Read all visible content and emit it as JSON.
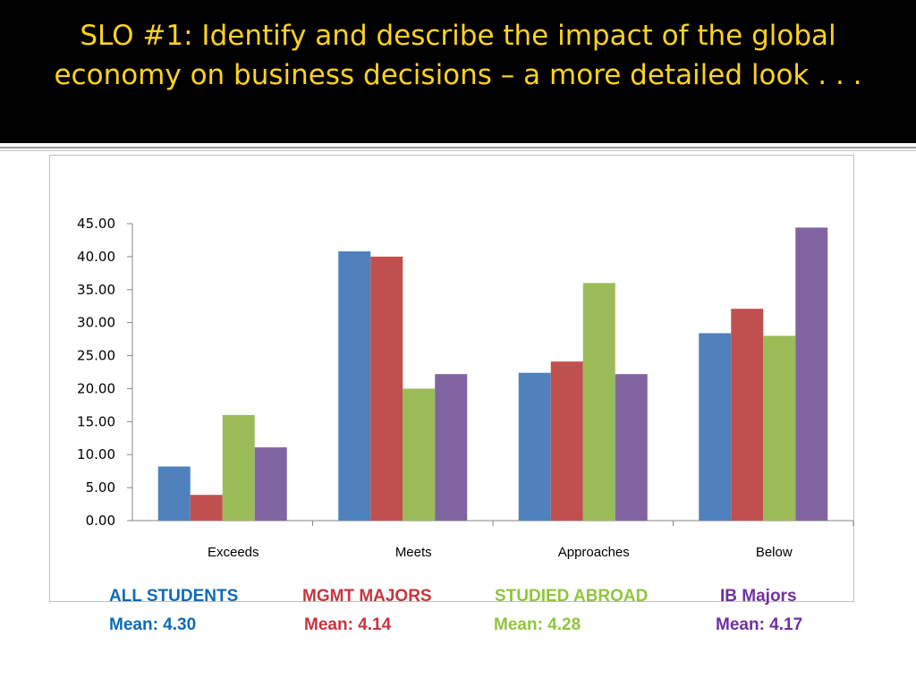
{
  "slide": {
    "title": "SLO #1:  Identify and describe the impact of the global economy on business decisions – a more detailed look . . ."
  },
  "chart_data": {
    "type": "bar",
    "categories": [
      "Exceeds",
      "Meets",
      "Approaches",
      "Below"
    ],
    "ylim": [
      0,
      45
    ],
    "yticks": [
      "0.00",
      "5.00",
      "10.00",
      "15.00",
      "20.00",
      "25.00",
      "30.00",
      "35.00",
      "40.00",
      "45.00"
    ],
    "grid": false,
    "series": [
      {
        "name": "ALL STUDENTS",
        "color": "#4f81bd",
        "values": [
          8.2,
          40.8,
          22.4,
          28.4
        ]
      },
      {
        "name": "MGMT MAJORS",
        "color": "#c0504d",
        "values": [
          3.9,
          40.0,
          24.1,
          32.1
        ]
      },
      {
        "name": "STUDIED ABROAD",
        "color": "#9bbb59",
        "values": [
          16.0,
          20.0,
          36.0,
          28.0
        ]
      },
      {
        "name": "IB Majors",
        "color": "#8064a2",
        "values": [
          11.1,
          22.2,
          22.2,
          44.4
        ]
      }
    ]
  },
  "legend": [
    {
      "name": "ALL STUDENTS",
      "mean": "Mean: 4.30",
      "color": "#0e6bb6"
    },
    {
      "name": "MGMT MAJORS",
      "mean": "Mean: 4.14",
      "color": "#c8343e"
    },
    {
      "name": "STUDIED ABROAD",
      "mean": "Mean: 4.28",
      "color": "#8fc63c"
    },
    {
      "name": "IB Majors",
      "mean": "Mean: 4.17",
      "color": "#7030a0"
    }
  ]
}
